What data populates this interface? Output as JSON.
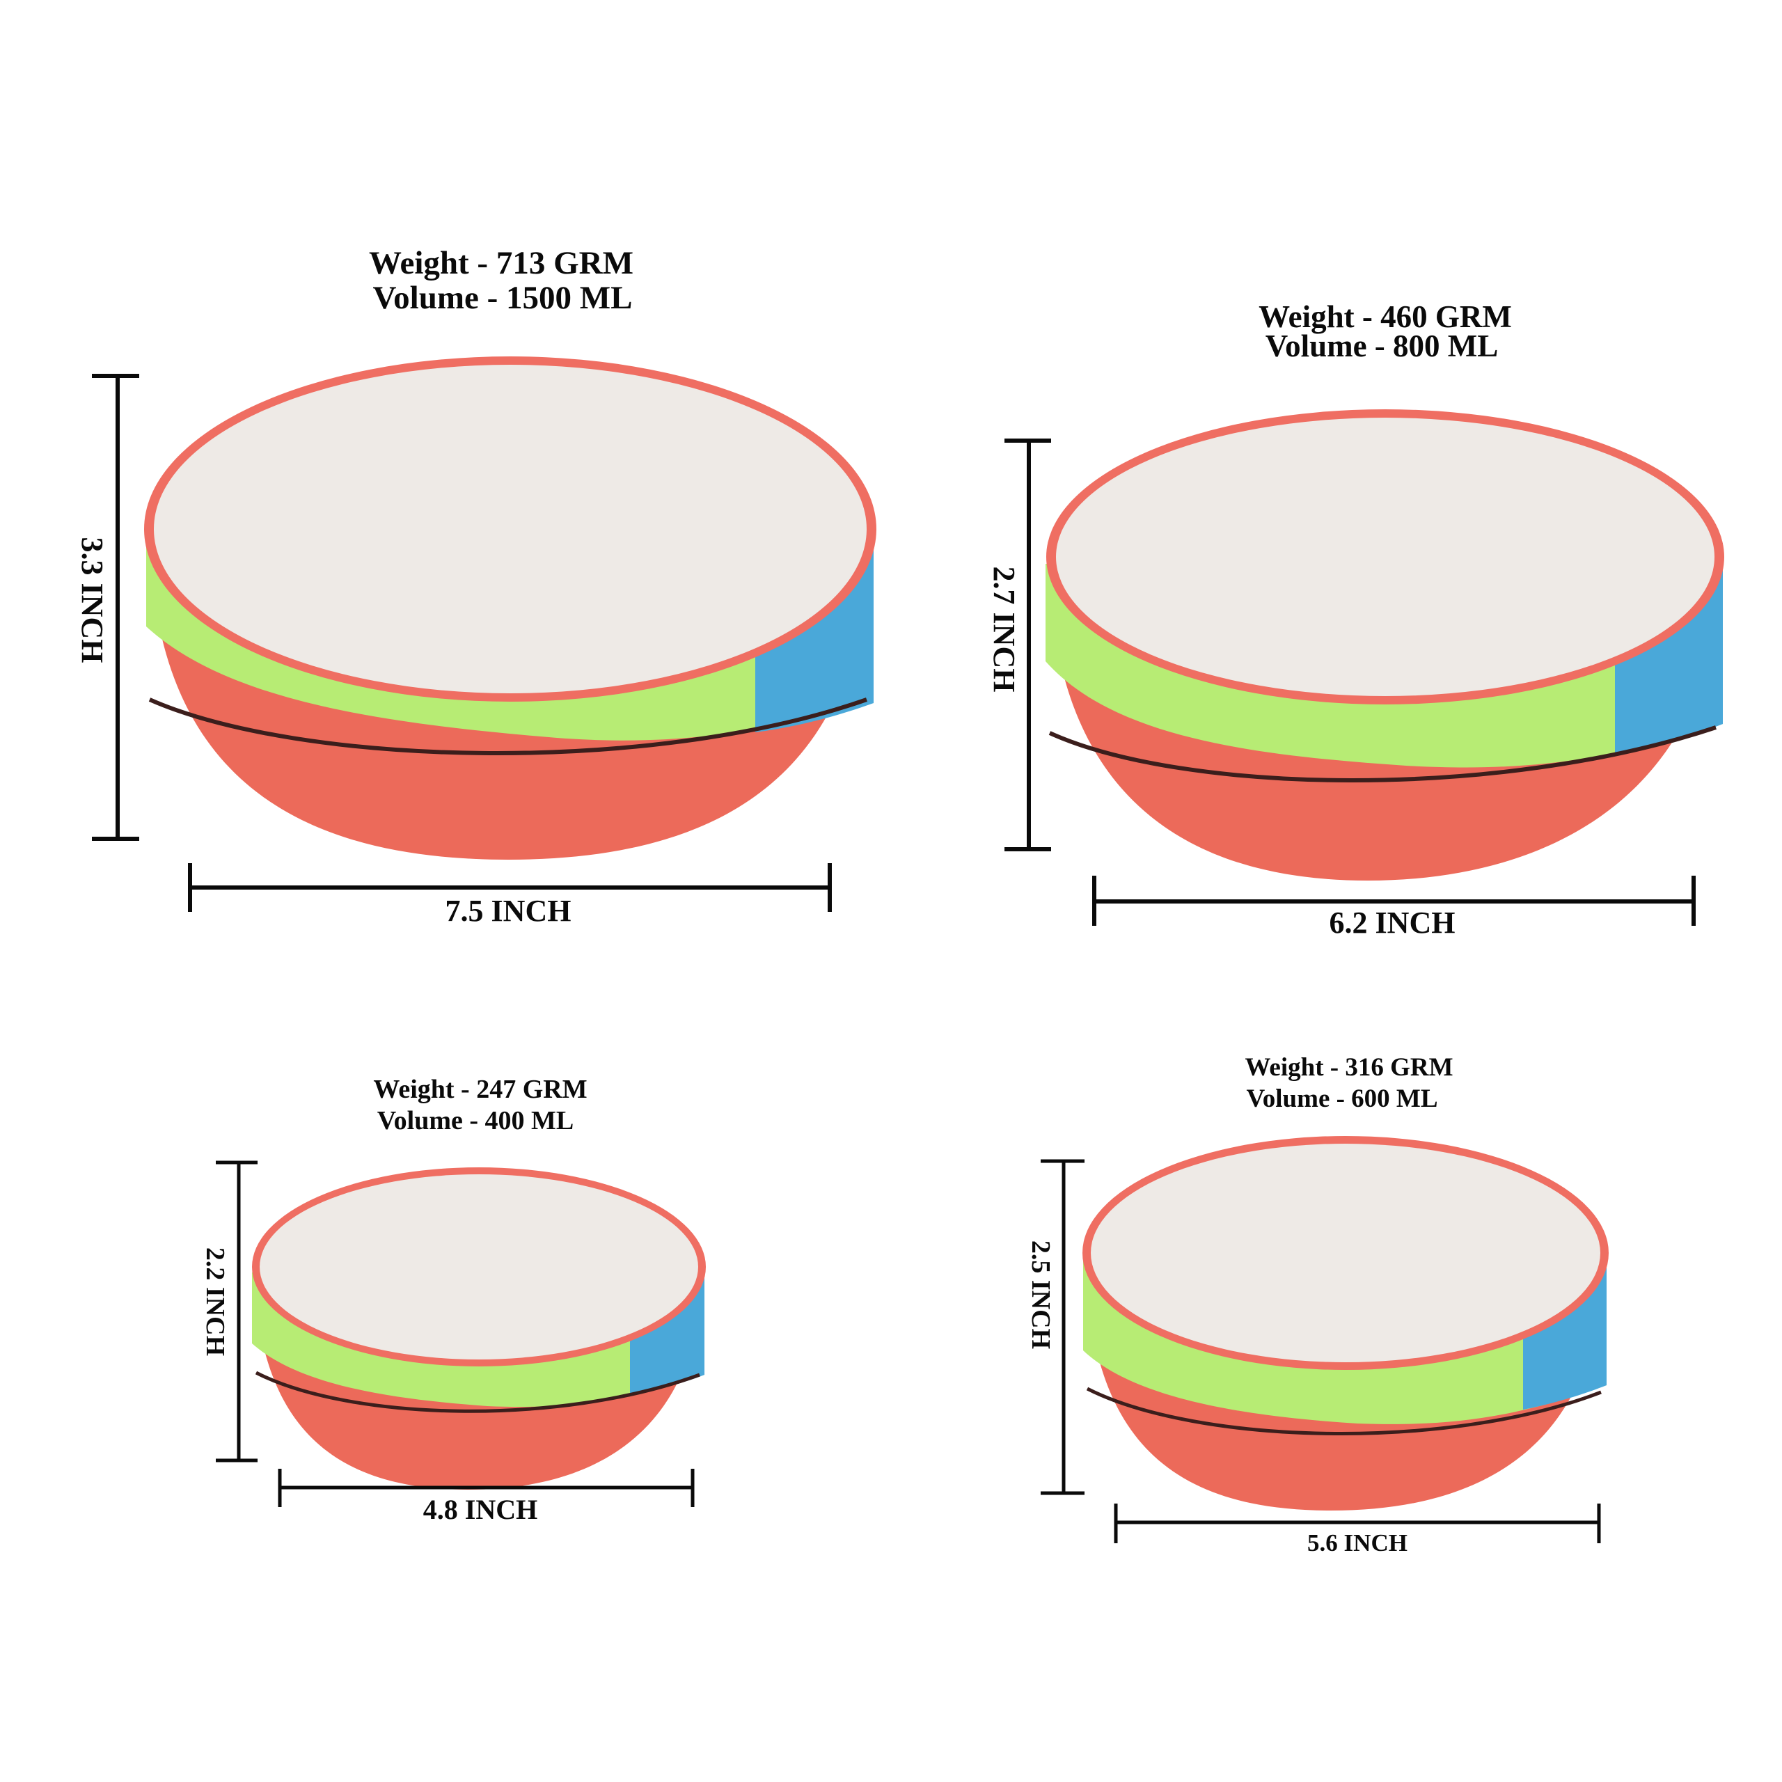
{
  "colors": {
    "interior": "#eeeae6",
    "rim": "#ef6e62",
    "green_band": "#b7ec74",
    "blue_band": "#4aa8d9",
    "coral_base": "#ec6a5a",
    "dark_seam": "#3b1e1c",
    "ink": "#0a0a0a"
  },
  "bowls": [
    {
      "id": "large",
      "weight": "Weight -  713 GRM",
      "volume": "Volume - 1500 ML",
      "height": "3.3 INCH",
      "width": "7.5 INCH"
    },
    {
      "id": "medium",
      "weight": "Weight - 460 GRM",
      "volume": "Volume - 800 ML",
      "height": "2.7 INCH",
      "width": "6.2 INCH"
    },
    {
      "id": "small",
      "weight": "Weight - 247 GRM",
      "volume": "Volume - 400 ML",
      "height": "2.2 INCH",
      "width": "4.8 INCH"
    },
    {
      "id": "small-medium",
      "weight": "Weight - 316 GRM",
      "volume": "Volume - 600 ML",
      "height": "2.5 INCH",
      "width": "5.6 INCH"
    }
  ]
}
